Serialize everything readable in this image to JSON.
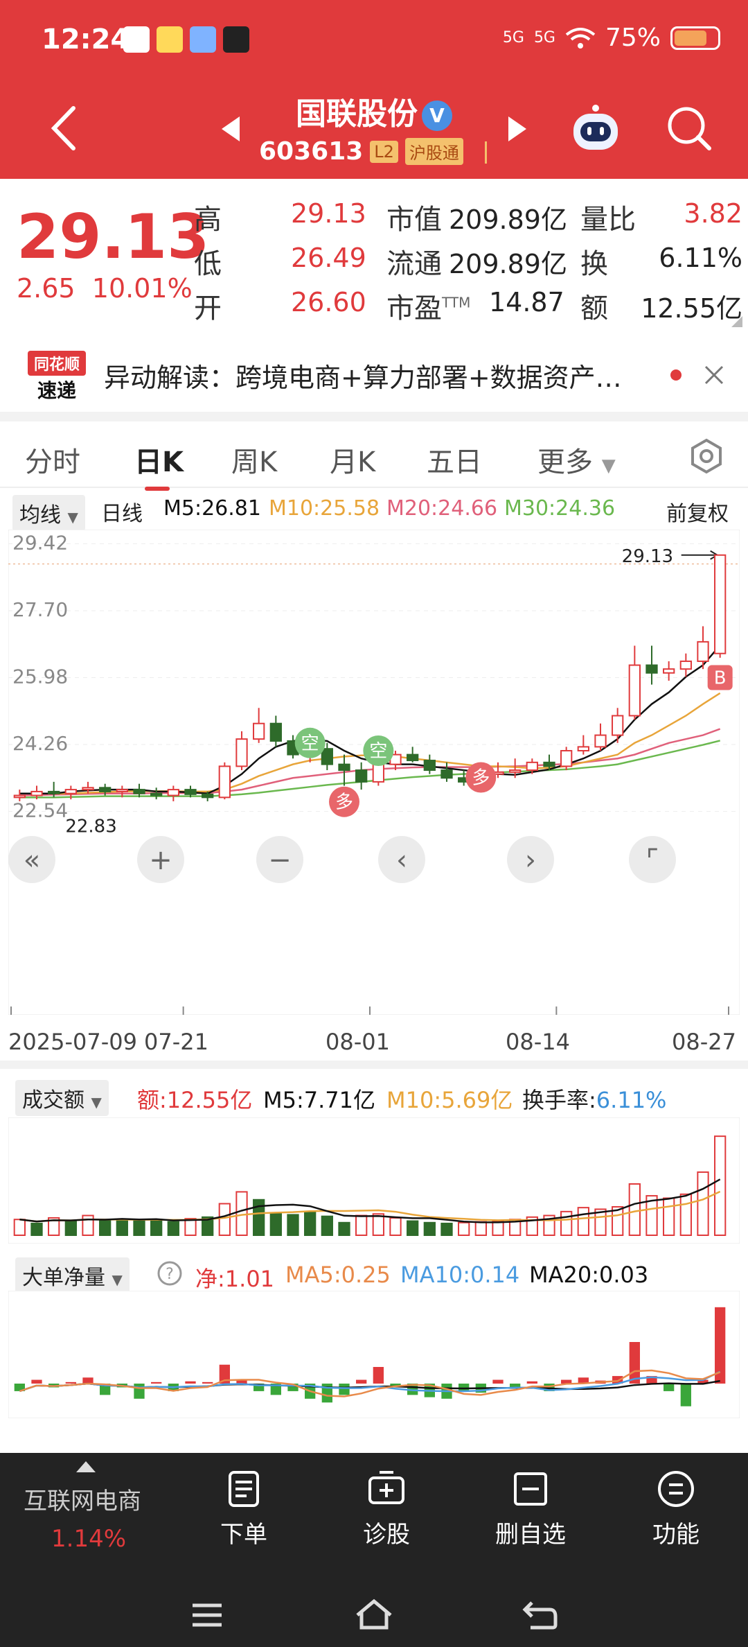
{
  "status_bar": {
    "time": "12:24",
    "battery": "75%",
    "signal1": "5G",
    "signal2": "5G"
  },
  "header": {
    "stock_name": "国联股份",
    "verified": "V",
    "stock_code": "603613",
    "tag_l2": "L2",
    "tag_connect": "沪股通"
  },
  "quote": {
    "price": "29.13",
    "change": "2.65",
    "change_pct": "10.01%",
    "high_label": "高",
    "high": "29.13",
    "low_label": "低",
    "low": "26.49",
    "open_label": "开",
    "open": "26.60",
    "mktcap_label": "市值",
    "mktcap": "209.89亿",
    "float_label": "流通",
    "float": "209.89亿",
    "pe_label": "市盈",
    "pe_sup": "TTM",
    "pe": "14.87",
    "vr_label": "量比",
    "vr": "3.82",
    "turnover_label": "换",
    "turnover": "6.11%",
    "amount_label": "额",
    "amount": "12.55亿"
  },
  "news": {
    "logo_line1": "同花顺",
    "logo_line2": "速递",
    "text": "异动解读：跨境电商+算力部署+数据资产…"
  },
  "tabs": [
    "分时",
    "日K",
    "周K",
    "月K",
    "五日",
    "更多"
  ],
  "ma_bar": {
    "select": "均线",
    "line_type": "日线",
    "m5": "M5:26.81",
    "m10": "M10:25.58",
    "m20": "M20:24.66",
    "m30": "M30:24.36",
    "adjust": "前复权"
  },
  "kline": {
    "y_labels": [
      "29.42",
      "27.70",
      "25.98",
      "24.26",
      "22.54"
    ],
    "max_label": "29.13",
    "min_label": "22.83",
    "dates": [
      "2025-07-09",
      "07-21",
      "08-01",
      "08-14",
      "08-27"
    ],
    "marker_b": "B",
    "marker_kong": "空",
    "marker_duo": "多"
  },
  "volume": {
    "select": "成交额",
    "amount": "额:12.55亿",
    "m5": "M5:7.71亿",
    "m10": "M10:5.69亿",
    "turnover_label": "换手率:",
    "turnover": "6.11%"
  },
  "flow": {
    "select": "大单净量",
    "net": "净:1.01",
    "ma5": "MA5:0.25",
    "ma10": "MA10:0.14",
    "ma20": "MA20:0.03"
  },
  "bottom": {
    "sector_name": "互联网电商",
    "sector_pct": "1.14%",
    "order": "下单",
    "diagnose": "诊股",
    "remove_watch": "删自选",
    "functions": "功能"
  },
  "colors": {
    "brand_red": "#e03a3c",
    "up": "#e03a3c",
    "down": "#2e6b2a",
    "m5": "#111111",
    "m10": "#e8a53a",
    "m20": "#e0607a",
    "m30": "#6ab84e"
  },
  "chart_data": {
    "type": "candlestick",
    "y_ticks": [
      29.42,
      27.7,
      25.98,
      24.26,
      22.54
    ],
    "ylim": [
      22.3,
      29.5
    ],
    "x_tick_labels": [
      "2025-07-09",
      "07-21",
      "08-01",
      "08-14",
      "08-27"
    ],
    "candles": [
      [
        22.9,
        23.1,
        22.8,
        22.95
      ],
      [
        22.95,
        23.2,
        22.85,
        23.05
      ],
      [
        23.05,
        23.3,
        22.9,
        23.0
      ],
      [
        23.0,
        23.2,
        22.85,
        23.1
      ],
      [
        23.1,
        23.3,
        23.0,
        23.15
      ],
      [
        23.15,
        23.25,
        22.95,
        23.05
      ],
      [
        23.05,
        23.2,
        22.9,
        23.1
      ],
      [
        23.1,
        23.25,
        22.9,
        23.0
      ],
      [
        23.0,
        23.15,
        22.85,
        22.95
      ],
      [
        22.95,
        23.2,
        22.8,
        23.1
      ],
      [
        23.1,
        23.2,
        22.9,
        22.98
      ],
      [
        22.98,
        23.05,
        22.8,
        22.9
      ],
      [
        22.9,
        23.8,
        22.85,
        23.7
      ],
      [
        23.7,
        24.6,
        23.6,
        24.4
      ],
      [
        24.4,
        25.2,
        24.3,
        24.8
      ],
      [
        24.8,
        25.0,
        24.2,
        24.35
      ],
      [
        24.35,
        24.5,
        23.9,
        24.0
      ],
      [
        24.0,
        24.5,
        23.8,
        24.15
      ],
      [
        24.15,
        24.3,
        23.6,
        23.75
      ],
      [
        23.75,
        24.0,
        23.2,
        23.6
      ],
      [
        23.6,
        23.8,
        23.1,
        23.3
      ],
      [
        23.3,
        23.9,
        23.2,
        23.75
      ],
      [
        23.75,
        24.1,
        23.6,
        24.0
      ],
      [
        24.0,
        24.2,
        23.8,
        23.85
      ],
      [
        23.85,
        24.0,
        23.5,
        23.6
      ],
      [
        23.6,
        23.8,
        23.3,
        23.4
      ],
      [
        23.4,
        23.6,
        23.2,
        23.3
      ],
      [
        23.3,
        23.6,
        23.2,
        23.5
      ],
      [
        23.5,
        23.8,
        23.4,
        23.55
      ],
      [
        23.55,
        23.9,
        23.4,
        23.6
      ],
      [
        23.6,
        23.9,
        23.5,
        23.8
      ],
      [
        23.8,
        24.0,
        23.6,
        23.7
      ],
      [
        23.7,
        24.2,
        23.6,
        24.1
      ],
      [
        24.1,
        24.5,
        24.0,
        24.2
      ],
      [
        24.2,
        24.8,
        24.1,
        24.5
      ],
      [
        24.5,
        25.2,
        24.3,
        25.0
      ],
      [
        25.0,
        26.8,
        24.9,
        26.3
      ],
      [
        26.3,
        26.8,
        25.8,
        26.1
      ],
      [
        26.1,
        26.4,
        25.9,
        26.2
      ],
      [
        26.2,
        26.6,
        26.0,
        26.4
      ],
      [
        26.4,
        27.3,
        26.2,
        26.9
      ],
      [
        26.6,
        29.13,
        26.49,
        29.13
      ]
    ],
    "ma": {
      "M5": [
        23.0,
        23.0,
        23.0,
        23.05,
        23.08,
        23.1,
        23.1,
        23.1,
        23.05,
        23.05,
        23.03,
        23.0,
        23.2,
        23.5,
        23.9,
        24.2,
        24.35,
        24.4,
        24.35,
        24.1,
        23.9,
        23.8,
        23.75,
        23.75,
        23.7,
        23.65,
        23.6,
        23.55,
        23.5,
        23.48,
        23.55,
        23.62,
        23.75,
        23.9,
        24.1,
        24.4,
        24.9,
        25.3,
        25.6,
        26.0,
        26.3,
        26.81
      ],
      "M10": [
        23.0,
        23.0,
        23.0,
        23.0,
        23.02,
        23.04,
        23.05,
        23.06,
        23.06,
        23.06,
        23.05,
        23.05,
        23.1,
        23.25,
        23.45,
        23.6,
        23.75,
        23.85,
        23.9,
        23.95,
        23.98,
        23.98,
        23.95,
        23.9,
        23.85,
        23.8,
        23.75,
        23.7,
        23.7,
        23.68,
        23.65,
        23.66,
        23.7,
        23.8,
        23.9,
        24.0,
        24.3,
        24.5,
        24.75,
        25.0,
        25.3,
        25.58
      ],
      "M20": [
        22.95,
        22.96,
        22.97,
        22.98,
        22.99,
        23.0,
        23.0,
        23.0,
        23.01,
        23.01,
        23.01,
        23.01,
        23.05,
        23.1,
        23.2,
        23.3,
        23.4,
        23.45,
        23.5,
        23.55,
        23.6,
        23.63,
        23.65,
        23.67,
        23.68,
        23.68,
        23.68,
        23.68,
        23.69,
        23.7,
        23.72,
        23.74,
        23.76,
        23.8,
        23.85,
        23.9,
        24.0,
        24.15,
        24.3,
        24.4,
        24.5,
        24.66
      ],
      "M30": [
        22.9,
        22.9,
        22.9,
        22.91,
        22.92,
        22.93,
        22.93,
        22.93,
        22.93,
        22.93,
        22.93,
        22.93,
        22.95,
        22.98,
        23.02,
        23.07,
        23.12,
        23.17,
        23.22,
        23.26,
        23.3,
        23.34,
        23.38,
        23.42,
        23.45,
        23.48,
        23.5,
        23.52,
        23.54,
        23.56,
        23.58,
        23.6,
        23.62,
        23.66,
        23.7,
        23.75,
        23.85,
        23.95,
        24.05,
        24.15,
        24.25,
        24.36
      ]
    },
    "volume": [
      2.0,
      1.5,
      2.2,
      1.8,
      2.5,
      1.9,
      2.0,
      1.8,
      2.0,
      1.7,
      2.1,
      2.3,
      4.0,
      5.5,
      4.5,
      2.8,
      2.6,
      3.0,
      2.4,
      1.6,
      2.5,
      2.7,
      2.2,
      1.8,
      1.6,
      1.5,
      1.6,
      1.7,
      1.8,
      2.0,
      2.3,
      2.5,
      3.0,
      3.5,
      3.3,
      3.6,
      6.5,
      5.0,
      4.7,
      5.2,
      8.0,
      12.55
    ],
    "volume_up": [
      1,
      0,
      1,
      0,
      1,
      0,
      0,
      0,
      0,
      0,
      1,
      0,
      1,
      1,
      0,
      0,
      0,
      0,
      0,
      0,
      1,
      1,
      1,
      0,
      0,
      0,
      1,
      1,
      1,
      1,
      1,
      1,
      1,
      1,
      1,
      1,
      1,
      1,
      1,
      1,
      1,
      1
    ],
    "flow_net": [
      -0.1,
      0.05,
      -0.05,
      0.02,
      0.08,
      -0.15,
      -0.05,
      -0.2,
      0.02,
      -0.1,
      0.03,
      0.02,
      0.25,
      0.05,
      -0.1,
      -0.15,
      -0.1,
      -0.2,
      -0.25,
      -0.15,
      0.05,
      0.22,
      -0.05,
      -0.15,
      -0.18,
      -0.2,
      -0.1,
      -0.12,
      0.05,
      -0.05,
      0.03,
      -0.1,
      0.05,
      0.08,
      0.04,
      0.1,
      0.55,
      0.1,
      -0.1,
      -0.3,
      0.05,
      1.01
    ]
  }
}
